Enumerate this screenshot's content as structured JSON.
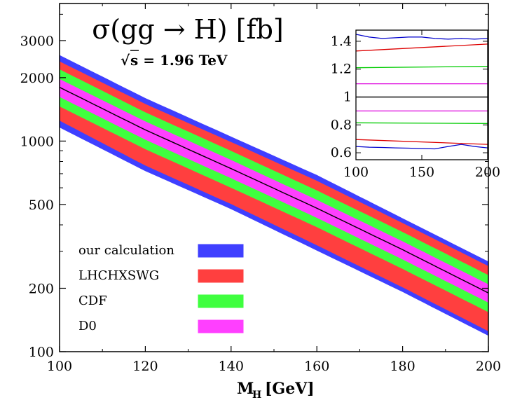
{
  "chart_data": [
    {
      "type": "area",
      "title": "σ(gg → H) [fb]",
      "subtitle_prefix": "√",
      "subtitle_rest": "s = 1.96 TeV",
      "subtitle_s": "s",
      "xlabel_main": "M",
      "xlabel_sub": "H",
      "xlabel_unit": "[GeV]",
      "ylabel": "",
      "xlim": [
        100,
        200
      ],
      "ylim": [
        100,
        4500
      ],
      "yscale": "log",
      "x_ticks": [
        "100",
        "120",
        "140",
        "160",
        "180",
        "200"
      ],
      "y_ticks": [
        "100",
        "200",
        "500",
        "1000",
        "2000",
        "3000"
      ],
      "grid": false,
      "legend_position": "bottom-left",
      "x": [
        100,
        120,
        140,
        160,
        180,
        200
      ],
      "central": [
        1800,
        1130,
        740,
        480,
        305,
        190
      ],
      "series": [
        {
          "name": "our calculation",
          "color": "#3f3fff",
          "upper": [
            2560,
            1600,
            1050,
            690,
            430,
            268
          ],
          "lower": [
            1160,
            720,
            475,
            302,
            192,
            119
          ]
        },
        {
          "name": "LHCHXSWG",
          "color": "#ff3f3f",
          "upper": [
            2390,
            1500,
            990,
            648,
            408,
            255
          ],
          "lower": [
            1250,
            765,
            502,
            320,
            202,
            125
          ]
        },
        {
          "name": "CDF",
          "color": "#3fff3f",
          "upper": [
            2190,
            1370,
            898,
            583,
            370,
            231
          ],
          "lower": [
            1460,
            915,
            600,
            390,
            247,
            154
          ]
        },
        {
          "name": "D0",
          "color": "#ff3fff",
          "upper": [
            1970,
            1240,
            813,
            526,
            334,
            209
          ],
          "lower": [
            1620,
            1015,
            666,
            432,
            274,
            171
          ]
        }
      ]
    },
    {
      "type": "line",
      "title": "",
      "xlim": [
        100,
        200
      ],
      "ylim": [
        0.55,
        1.48
      ],
      "x_ticks": [
        "100",
        "150",
        "200"
      ],
      "y_ticks": [
        "0.6",
        "0.8",
        "1",
        "1.2",
        "1.4"
      ],
      "y_tick_values": [
        0.6,
        0.8,
        1.0,
        1.2,
        1.4
      ],
      "series": [
        {
          "name": "our calculation",
          "color": "#0000cc",
          "x": [
            100,
            110,
            120,
            130,
            140,
            150,
            160,
            170,
            180,
            190,
            200
          ],
          "upper": [
            1.45,
            1.43,
            1.42,
            1.425,
            1.43,
            1.43,
            1.42,
            1.415,
            1.42,
            1.415,
            1.42
          ],
          "lower": [
            0.645,
            0.64,
            0.638,
            0.635,
            0.633,
            0.63,
            0.628,
            0.645,
            0.66,
            0.645,
            0.635
          ]
        },
        {
          "name": "LHCHXSWG",
          "color": "#dd0000",
          "x": [
            100,
            200
          ],
          "upper": [
            1.33,
            1.38
          ],
          "lower": [
            0.695,
            0.66
          ]
        },
        {
          "name": "CDF",
          "color": "#00cc00",
          "x": [
            100,
            200
          ],
          "upper": [
            1.21,
            1.22
          ],
          "lower": [
            0.815,
            0.81
          ]
        },
        {
          "name": "D0",
          "color": "#dd00dd",
          "x": [
            100,
            200
          ],
          "upper": [
            1.095,
            1.095
          ],
          "lower": [
            0.9,
            0.9
          ]
        },
        {
          "name": "",
          "color": "#000000",
          "x": [
            100,
            200
          ],
          "upper": [
            1.0,
            1.0
          ],
          "lower": [
            1.0,
            1.0
          ]
        }
      ]
    }
  ]
}
